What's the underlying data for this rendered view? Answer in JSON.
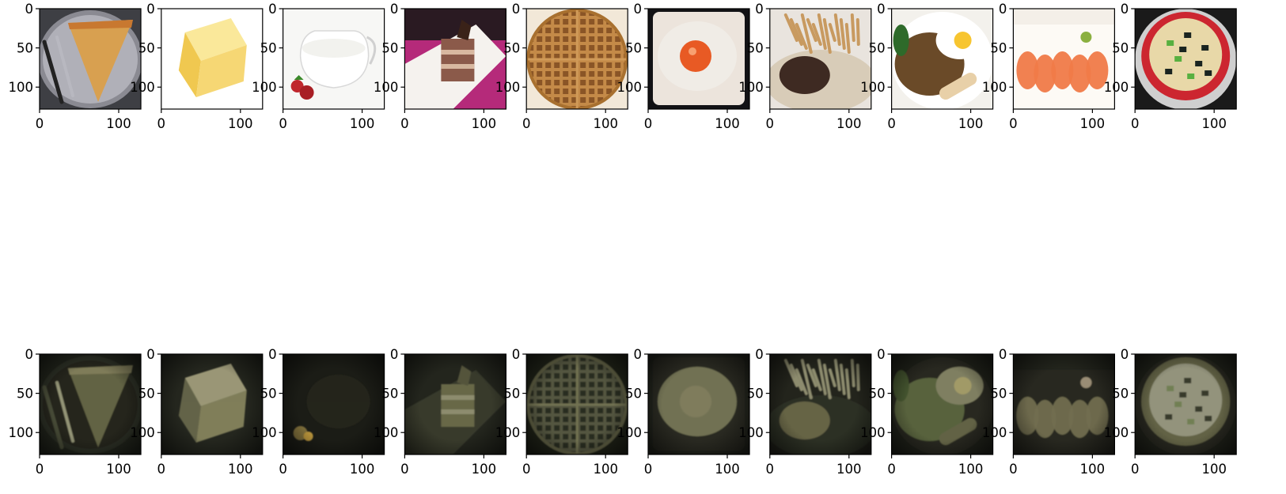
{
  "figure": {
    "background": "#ffffff",
    "description_type": "image-grid"
  },
  "chart_data": {
    "type": "image-grid",
    "rows": 2,
    "cols": 10,
    "xlim": [
      0,
      128
    ],
    "ylim": [
      128,
      0
    ],
    "xticks": [
      0,
      100
    ],
    "yticks": [
      0,
      50,
      100
    ],
    "xtick_labels": [
      "0",
      "100"
    ],
    "ytick_labels": [
      "0",
      "50",
      "100"
    ],
    "axis_color": "#000000",
    "panels": [
      {
        "row": 0,
        "col": 0,
        "content": "pizza-slice",
        "palette": {
          "bg": "#3e3f44",
          "main": "#d8a050",
          "accent": "#b8b8c0"
        }
      },
      {
        "row": 0,
        "col": 1,
        "content": "butter-block",
        "palette": {
          "bg": "#ffffff",
          "main": "#f6d774",
          "accent": "#e8b84a"
        }
      },
      {
        "row": 0,
        "col": 2,
        "content": "milk-jug",
        "palette": {
          "bg": "#f7f7f5",
          "main": "#eeeeea",
          "accent": "#c0272d"
        }
      },
      {
        "row": 0,
        "col": 3,
        "content": "chocolate-cake",
        "palette": {
          "bg": "#b52a7a",
          "main": "#8b5a4a",
          "accent": "#f5f2ee"
        }
      },
      {
        "row": 0,
        "col": 4,
        "content": "waffle",
        "palette": {
          "bg": "#f2e8d8",
          "main": "#b97d3e",
          "accent": "#8a5526"
        }
      },
      {
        "row": 0,
        "col": 5,
        "content": "fried-egg",
        "palette": {
          "bg": "#121215",
          "main": "#f0ece6",
          "accent": "#e85a24"
        }
      },
      {
        "row": 0,
        "col": 6,
        "content": "steak-with-fries",
        "palette": {
          "bg": "#e9e4de",
          "main": "#3e2a22",
          "accent": "#c89a60"
        }
      },
      {
        "row": 0,
        "col": 7,
        "content": "noodles-with-egg",
        "palette": {
          "bg": "#f3f1ec",
          "main": "#6a4a28",
          "accent": "#f7c530"
        }
      },
      {
        "row": 0,
        "col": 8,
        "content": "salmon-sashimi",
        "palette": {
          "bg": "#f4efe8",
          "main": "#f07a48",
          "accent": "#8bb040"
        }
      },
      {
        "row": 0,
        "col": 9,
        "content": "miso-soup",
        "palette": {
          "bg": "#1a1a1a",
          "main": "#cc2630",
          "accent": "#e8d8a8"
        }
      },
      {
        "row": 1,
        "col": 0,
        "content": "reconstruction-pizza",
        "palette": {
          "bg": "#22251c",
          "main": "#6a6a48",
          "accent": "#a0a080"
        }
      },
      {
        "row": 1,
        "col": 1,
        "content": "reconstruction-butter",
        "palette": {
          "bg": "#24261e",
          "main": "#8a8860",
          "accent": "#b0a880"
        }
      },
      {
        "row": 1,
        "col": 2,
        "content": "reconstruction-milk",
        "palette": {
          "bg": "#1b1c16",
          "main": "#2c2d22",
          "accent": "#c8a040"
        }
      },
      {
        "row": 1,
        "col": 3,
        "content": "reconstruction-cake",
        "palette": {
          "bg": "#23251d",
          "main": "#70704e",
          "accent": "#a8a080"
        }
      },
      {
        "row": 1,
        "col": 4,
        "content": "reconstruction-waffle",
        "palette": {
          "bg": "#202318",
          "main": "#6e6e50",
          "accent": "#9a9878"
        }
      },
      {
        "row": 1,
        "col": 5,
        "content": "reconstruction-egg",
        "palette": {
          "bg": "#22241c",
          "main": "#7a7a5a",
          "accent": "#a8a890"
        }
      },
      {
        "row": 1,
        "col": 6,
        "content": "reconstruction-steak",
        "palette": {
          "bg": "#23241c",
          "main": "#6e6c4c",
          "accent": "#9a9878"
        }
      },
      {
        "row": 1,
        "col": 7,
        "content": "reconstruction-noodles",
        "palette": {
          "bg": "#20221a",
          "main": "#5e6a42",
          "accent": "#a8b070"
        }
      },
      {
        "row": 1,
        "col": 8,
        "content": "reconstruction-salmon",
        "palette": {
          "bg": "#22241c",
          "main": "#7a7656",
          "accent": "#a89a80"
        }
      },
      {
        "row": 1,
        "col": 9,
        "content": "reconstruction-soup",
        "palette": {
          "bg": "#20221a",
          "main": "#6a6a4c",
          "accent": "#a0a088"
        }
      }
    ]
  }
}
